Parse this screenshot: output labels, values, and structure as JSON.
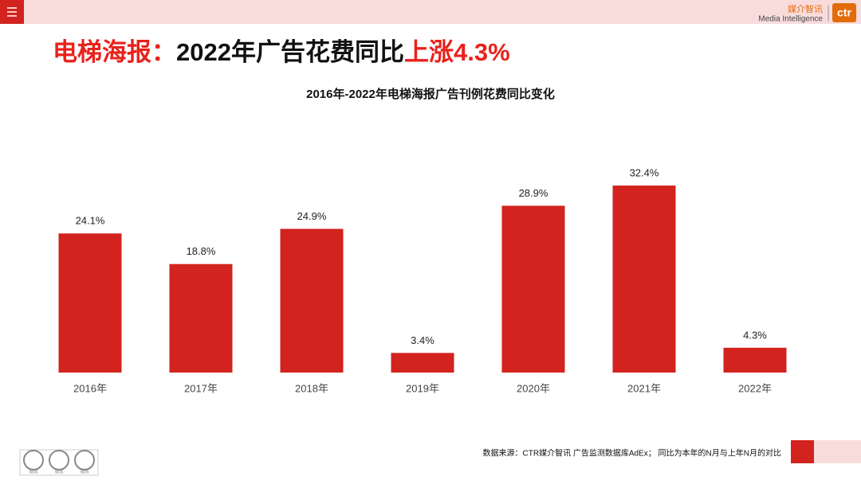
{
  "header": {
    "brand_cn": "媒介智讯",
    "brand_en": "Media Intelligence",
    "logo": "ctr"
  },
  "headline": {
    "part1": "电梯海报：",
    "part2": "2022年广告花费同比",
    "part3": "上涨4.3%"
  },
  "chart_data": {
    "type": "bar",
    "title": "2016年-2022年电梯海报广告刊例花费同比变化",
    "categories": [
      "2016年",
      "2017年",
      "2018年",
      "2019年",
      "2020年",
      "2021年",
      "2022年"
    ],
    "values": [
      24.1,
      18.8,
      24.9,
      3.4,
      28.9,
      32.4,
      4.3
    ],
    "value_labels": [
      "24.1%",
      "18.8%",
      "24.9%",
      "3.4%",
      "28.9%",
      "32.4%",
      "4.3%"
    ],
    "color": "#d2231e",
    "ylim": [
      0,
      40
    ]
  },
  "footer": {
    "source": "数据来源：CTR媒介智讯 广告监测数据库AdEx； 同比为本年的N月与上年N月的对比",
    "badges": [
      "SGS",
      "SGS",
      "SGS"
    ]
  }
}
